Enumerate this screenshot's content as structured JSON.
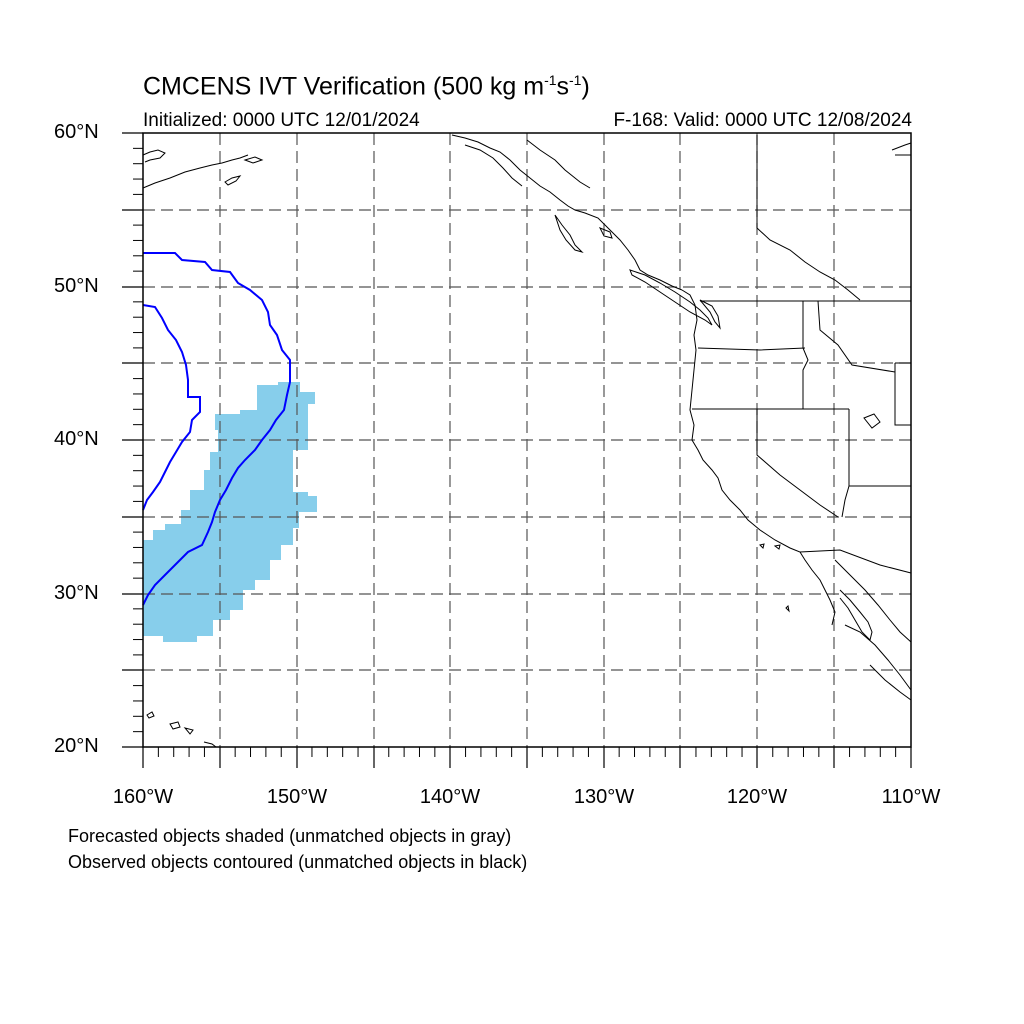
{
  "title": {
    "main": "CMCENS IVT Verification (500 kg m",
    "exp1": "-1",
    "mid": "s",
    "exp2": "-1",
    "close": ")"
  },
  "initialized": "Initialized: 0000 UTC 12/01/2024",
  "valid": "F-168: Valid: 0000 UTC 12/08/2024",
  "axes": {
    "lat_labels": [
      "60°N",
      "50°N",
      "40°N",
      "30°N",
      "20°N"
    ],
    "lon_labels": [
      "160°W",
      "150°W",
      "140°W",
      "130°W",
      "120°W",
      "110°W"
    ],
    "lat_range": [
      20,
      60
    ],
    "lon_range": [
      -160,
      -110
    ]
  },
  "legend": {
    "line1": "Forecasted objects shaded (unmatched objects in gray)",
    "line2": "Observed objects contoured (unmatched objects in black)"
  },
  "colors": {
    "forecast_fill": "#87ceeb",
    "observed_contour": "#0000ff",
    "coastline": "#000000",
    "grid": "#555555"
  }
}
